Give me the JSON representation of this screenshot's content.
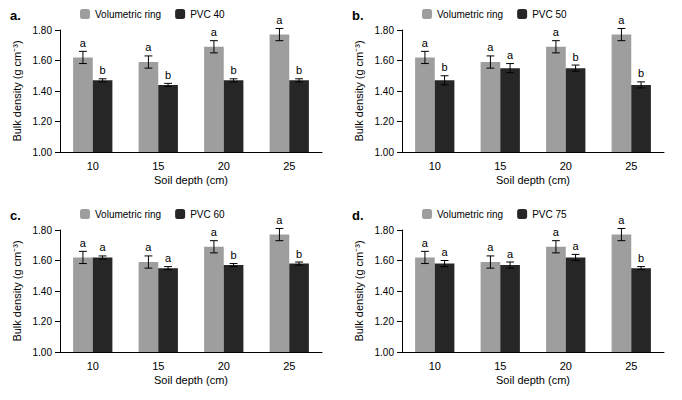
{
  "chart_data": [
    {
      "type": "bar",
      "title": "a.",
      "categories": [
        "10",
        "15",
        "20",
        "25"
      ],
      "x_label": "Soil depth (cm)",
      "y_label": "Bulk density (g cm⁻³)",
      "ylim": [
        1.0,
        1.8
      ],
      "yticks": [
        {
          "value": 1.0,
          "label": "1.00"
        },
        {
          "value": 1.2,
          "label": "1.20"
        },
        {
          "value": 1.4,
          "label": "1.40"
        },
        {
          "value": 1.6,
          "label": "1.60"
        },
        {
          "value": 1.8,
          "label": "1.80"
        }
      ],
      "legend": "top",
      "series": [
        {
          "name": "Volumetric ring",
          "color": "#9e9e9e",
          "values": [
            1.62,
            1.59,
            1.69,
            1.77
          ],
          "errors": [
            0.04,
            0.04,
            0.04,
            0.04
          ],
          "letters": [
            "a",
            "a",
            "a",
            "a"
          ]
        },
        {
          "name": "PVC 40",
          "color": "#262626",
          "values": [
            1.47,
            1.44,
            1.47,
            1.47
          ],
          "errors": [
            0.01,
            0.01,
            0.01,
            0.01
          ],
          "letters": [
            "b",
            "b",
            "b",
            "b"
          ]
        }
      ]
    },
    {
      "type": "bar",
      "title": "b.",
      "categories": [
        "10",
        "15",
        "20",
        "25"
      ],
      "x_label": "Soil depth (cm)",
      "y_label": "Bulk density (g cm⁻³)",
      "ylim": [
        1.0,
        1.8
      ],
      "yticks": [
        {
          "value": 1.0,
          "label": "1.00"
        },
        {
          "value": 1.2,
          "label": "1.20"
        },
        {
          "value": 1.4,
          "label": "1.40"
        },
        {
          "value": 1.6,
          "label": "1.60"
        },
        {
          "value": 1.8,
          "label": "1.80"
        }
      ],
      "legend": "top",
      "series": [
        {
          "name": "Volumetric ring",
          "color": "#9e9e9e",
          "values": [
            1.62,
            1.59,
            1.69,
            1.77
          ],
          "errors": [
            0.04,
            0.04,
            0.04,
            0.04
          ],
          "letters": [
            "a",
            "a",
            "a",
            "a"
          ]
        },
        {
          "name": "PVC 50",
          "color": "#262626",
          "values": [
            1.47,
            1.55,
            1.55,
            1.44
          ],
          "errors": [
            0.03,
            0.03,
            0.02,
            0.02
          ],
          "letters": [
            "b",
            "a",
            "b",
            "b"
          ]
        }
      ]
    },
    {
      "type": "bar",
      "title": "c.",
      "categories": [
        "10",
        "15",
        "20",
        "25"
      ],
      "x_label": "Soil depth (cm)",
      "y_label": "Bulk density (g cm⁻³)",
      "ylim": [
        1.0,
        1.8
      ],
      "yticks": [
        {
          "value": 1.0,
          "label": "1.00"
        },
        {
          "value": 1.2,
          "label": "1.20"
        },
        {
          "value": 1.4,
          "label": "1.40"
        },
        {
          "value": 1.6,
          "label": "1.60"
        },
        {
          "value": 1.8,
          "label": "1.80"
        }
      ],
      "legend": "top",
      "series": [
        {
          "name": "Volumetric ring",
          "color": "#9e9e9e",
          "values": [
            1.62,
            1.59,
            1.69,
            1.77
          ],
          "errors": [
            0.04,
            0.04,
            0.04,
            0.04
          ],
          "letters": [
            "a",
            "a",
            "a",
            "a"
          ]
        },
        {
          "name": "PVC 60",
          "color": "#262626",
          "values": [
            1.62,
            1.55,
            1.57,
            1.58
          ],
          "errors": [
            0.01,
            0.01,
            0.01,
            0.01
          ],
          "letters": [
            "a",
            "a",
            "b",
            "b"
          ]
        }
      ]
    },
    {
      "type": "bar",
      "title": "d.",
      "categories": [
        "10",
        "15",
        "20",
        "25"
      ],
      "x_label": "Soil depth (cm)",
      "y_label": "Bulk density (g cm⁻³)",
      "ylim": [
        1.0,
        1.8
      ],
      "yticks": [
        {
          "value": 1.0,
          "label": "1.00"
        },
        {
          "value": 1.2,
          "label": "1.20"
        },
        {
          "value": 1.4,
          "label": "1.40"
        },
        {
          "value": 1.6,
          "label": "1.60"
        },
        {
          "value": 1.8,
          "label": "1.80"
        }
      ],
      "legend": "top",
      "series": [
        {
          "name": "Volumetric ring",
          "color": "#9e9e9e",
          "values": [
            1.62,
            1.59,
            1.69,
            1.77
          ],
          "errors": [
            0.04,
            0.04,
            0.04,
            0.04
          ],
          "letters": [
            "a",
            "a",
            "a",
            "a"
          ]
        },
        {
          "name": "PVC 75",
          "color": "#262626",
          "values": [
            1.58,
            1.57,
            1.62,
            1.55
          ],
          "errors": [
            0.02,
            0.02,
            0.02,
            0.01
          ],
          "letters": [
            "a",
            "a",
            "a",
            "b"
          ]
        }
      ]
    }
  ]
}
